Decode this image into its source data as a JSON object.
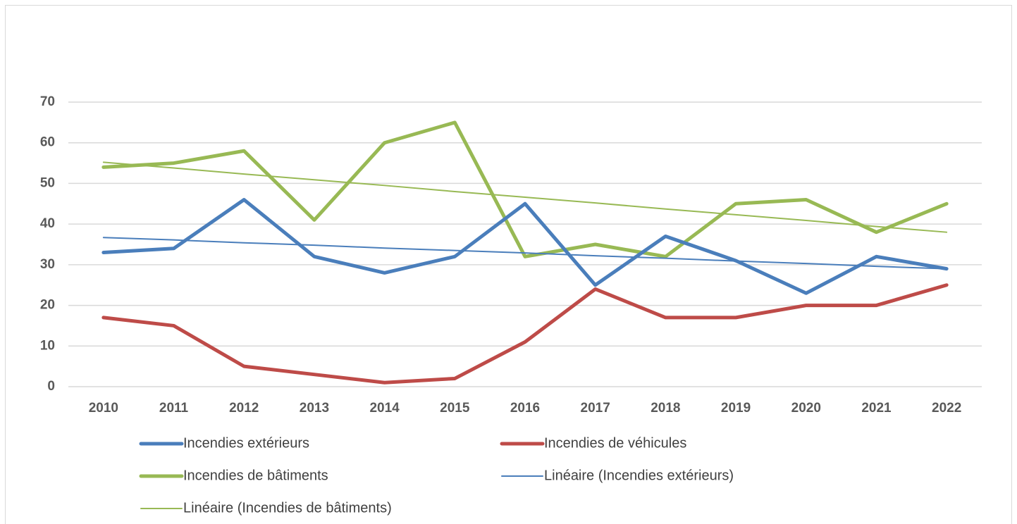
{
  "chart_data": {
    "type": "line",
    "categories": [
      "2010",
      "2011",
      "2012",
      "2013",
      "2014",
      "2015",
      "2016",
      "2017",
      "2018",
      "2019",
      "2020",
      "2021",
      "2022"
    ],
    "ylim": [
      0,
      70
    ],
    "yticks": [
      0,
      10,
      20,
      30,
      40,
      50,
      60,
      70
    ],
    "grid": true,
    "legend": "bottom",
    "series": [
      {
        "name": "Incendies extérieurs",
        "color": "#4a7ebb",
        "width": 5,
        "values": [
          33,
          34,
          46,
          32,
          28,
          32,
          45,
          25,
          37,
          31,
          23,
          32,
          29
        ]
      },
      {
        "name": "Incendies de véhicules",
        "color": "#be4b48",
        "width": 5,
        "values": [
          17,
          15,
          5,
          3,
          1,
          2,
          11,
          24,
          17,
          17,
          20,
          20,
          25
        ]
      },
      {
        "name": "Incendies de bâtiments",
        "color": "#98b954",
        "width": 5,
        "values": [
          54,
          55,
          58,
          41,
          60,
          65,
          32,
          35,
          32,
          45,
          46,
          38,
          45
        ]
      },
      {
        "name": "Linéaire (Incendies extérieurs)",
        "color": "#4a7ebb",
        "width": 2,
        "values": [
          36.7,
          36.1,
          35.4,
          34.8,
          34.1,
          33.5,
          32.9,
          32.2,
          31.6,
          30.9,
          30.3,
          29.6,
          29.0
        ]
      },
      {
        "name": "Linéaire (Incendies de bâtiments)",
        "color": "#98b954",
        "width": 2,
        "values": [
          55.2,
          53.8,
          52.3,
          50.9,
          49.5,
          48.0,
          46.6,
          45.2,
          43.7,
          42.3,
          40.9,
          39.4,
          38.0
        ]
      }
    ]
  }
}
